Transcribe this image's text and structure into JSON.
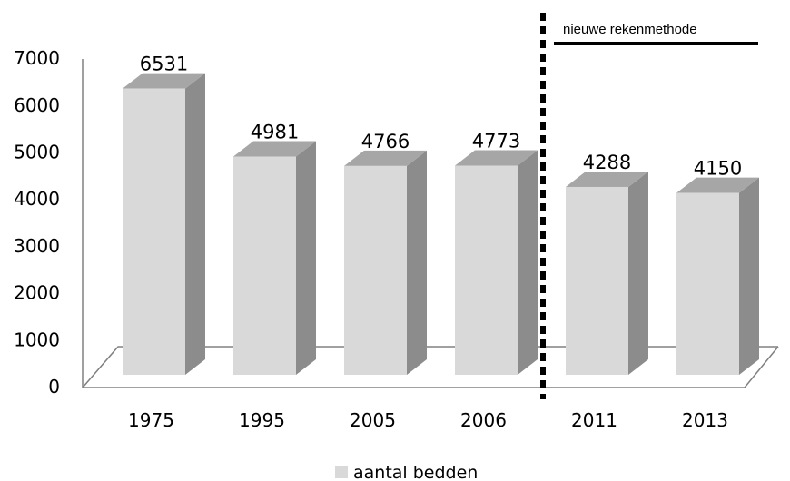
{
  "chart_data": {
    "type": "bar",
    "categories": [
      "1975",
      "1995",
      "2005",
      "2006",
      "2011",
      "2013"
    ],
    "series": [
      {
        "name": "aantal bedden",
        "values": [
          6531,
          4981,
          4766,
          4773,
          4288,
          4150
        ]
      }
    ],
    "ylim": [
      0,
      7000
    ],
    "yticks": [
      "0",
      "1000",
      "2000",
      "3000",
      "4000",
      "5000",
      "6000",
      "7000"
    ],
    "title": "",
    "xlabel": "",
    "ylabel": "",
    "grid": false,
    "legend_position": "bottom",
    "style": "3d-bar",
    "colors": {
      "bar_front": "#d9d9d9",
      "bar_top": "#a6a6a6",
      "bar_side": "#8c8c8c",
      "axis": "#808080"
    },
    "annotation": {
      "text": "nieuwe rekenmethode",
      "separator_after_category": "2006"
    }
  }
}
